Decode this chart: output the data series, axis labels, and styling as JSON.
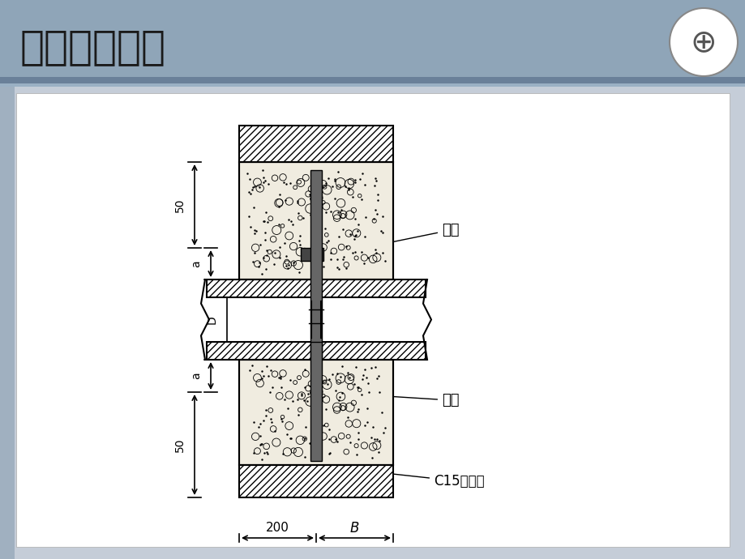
{
  "title": "固定式穿墙管",
  "bg_color": "#b8c4d0",
  "slide_bg": "#c5cdd8",
  "white_panel_bg": "#ffffff",
  "header_bg": "#8fa0b0",
  "label_yi_huan": "翼环",
  "label_gang_guan": "钢管",
  "label_c15": "C15混凝土",
  "dim_200": "200",
  "dim_B": "B",
  "dim_50_top": "50",
  "dim_a_top": "a",
  "dim_D": "D",
  "dim_a_bot": "a",
  "dim_50_bot": "50",
  "hatch_color": "#000000",
  "concrete_color": "#e8e0d0",
  "line_color": "#000000"
}
